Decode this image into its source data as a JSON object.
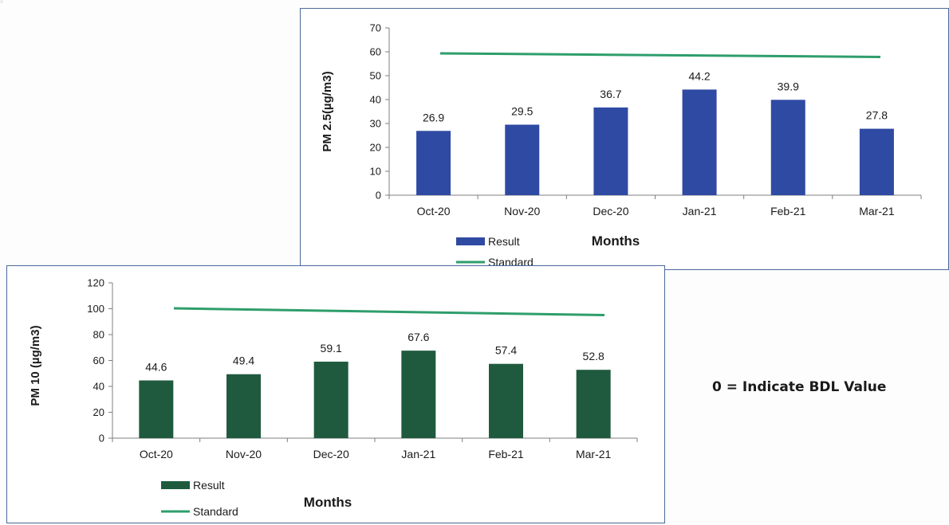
{
  "note": "0 = Indicate BDL Value",
  "colors": {
    "pm25_bar": "#2f4aa3",
    "pm10_bar": "#1f5a3e",
    "standard_line": "#2e9e6b",
    "axis": "#7f7f7f",
    "text": "#1a1a1a"
  },
  "chart_data": [
    {
      "id": "pm25",
      "type": "bar",
      "title": "",
      "xlabel": "Months",
      "ylabel": "PM 2.5(µg/m3)",
      "categories": [
        "Oct-20",
        "Nov-20",
        "Dec-20",
        "Jan-21",
        "Feb-21",
        "Mar-21"
      ],
      "ylim": [
        0,
        70
      ],
      "yticks": [
        0,
        10,
        20,
        30,
        40,
        50,
        60,
        70
      ],
      "series": [
        {
          "name": "Result",
          "type": "bar",
          "values": [
            26.9,
            29.5,
            36.7,
            44.2,
            39.9,
            27.8
          ],
          "data_labels": [
            "26.9",
            "29.5",
            "36.7",
            "44.2",
            "39.9",
            "27.8"
          ]
        },
        {
          "name": "Standard",
          "type": "line",
          "values": [
            60,
            60,
            60,
            60,
            60,
            60
          ]
        }
      ],
      "grid": false,
      "legend": "bottom-left"
    },
    {
      "id": "pm10",
      "type": "bar",
      "title": "",
      "xlabel": "Months",
      "ylabel": "PM 10 (µg/m3)",
      "categories": [
        "Oct-20",
        "Nov-20",
        "Dec-20",
        "Jan-21",
        "Feb-21",
        "Mar-21"
      ],
      "ylim": [
        0,
        120
      ],
      "yticks": [
        0,
        20,
        40,
        60,
        80,
        100,
        120
      ],
      "series": [
        {
          "name": "Result",
          "type": "bar",
          "values": [
            44.6,
            49.4,
            59.1,
            67.6,
            57.4,
            52.8
          ],
          "data_labels": [
            "44.6",
            "49.4",
            "59.1",
            "67.6",
            "57.4",
            "52.8"
          ]
        },
        {
          "name": "Standard",
          "type": "line",
          "values": [
            100,
            100,
            100,
            100,
            100,
            100
          ]
        }
      ],
      "grid": false,
      "legend": "bottom-left"
    }
  ]
}
